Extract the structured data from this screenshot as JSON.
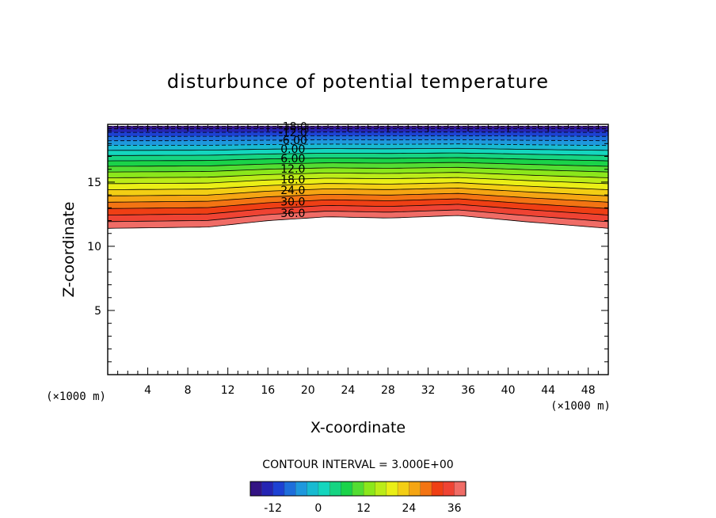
{
  "chart_data": {
    "type": "contour",
    "title": "disturbunce of potential temperature",
    "xlabel": "X-coordinate",
    "ylabel": "Z-coordinate",
    "x_unit": "(×1000 m)",
    "y_unit": "(×1000 m)",
    "xlim": [
      0,
      50
    ],
    "ylim": [
      0,
      19.5
    ],
    "xticks": [
      4,
      8,
      12,
      16,
      20,
      24,
      28,
      32,
      36,
      40,
      44,
      48
    ],
    "yticks": [
      5,
      10,
      15
    ],
    "contour_interval_text": "CONTOUR INTERVAL = 3.000E+00",
    "contour_interval": 3,
    "level_range": [
      -18,
      39
    ],
    "contour_labels": [
      "-18.0",
      "-12.0",
      "-6.00",
      "0.00",
      "6.00",
      "12.0",
      "18.0",
      "24.0",
      "30.0",
      "36.0"
    ],
    "negative_contours": "dashed",
    "colorbar_ticks": [
      "-12",
      "0",
      "12",
      "24",
      "36"
    ],
    "colormap": [
      "#3a0a6b",
      "#1c2fd0",
      "#1f8fe0",
      "#14d6c8",
      "#17d24a",
      "#8ee81a",
      "#f2f016",
      "#f59a12",
      "#ee2a14",
      "#f08080"
    ],
    "colorbar_values": [
      -12,
      0,
      12,
      24,
      36
    ],
    "lowest_level_z_profile": {
      "x": [
        0,
        10,
        16,
        22,
        28,
        35,
        42,
        50
      ],
      "z": [
        11.4,
        11.5,
        12.0,
        12.3,
        12.2,
        12.4,
        11.9,
        11.4
      ]
    }
  }
}
